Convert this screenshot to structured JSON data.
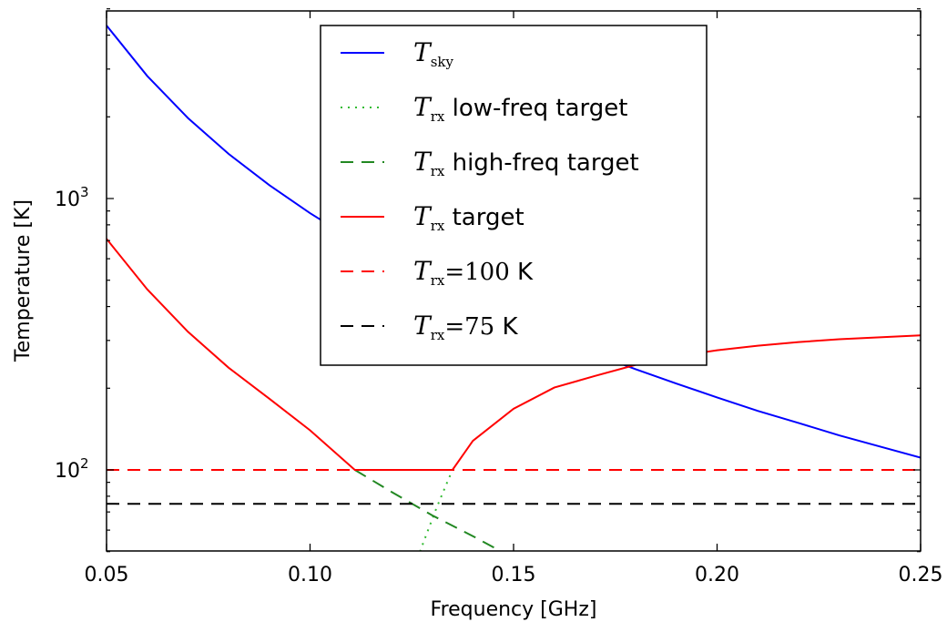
{
  "chart_data": {
    "type": "line",
    "xlabel": "Frequency [GHz]",
    "ylabel": "Temperature [K]",
    "x_range": [
      0.05,
      0.25
    ],
    "y_range": [
      50,
      5000
    ],
    "y_scale": "log",
    "x_ticks": [
      {
        "value": 0.05,
        "label": "0.05"
      },
      {
        "value": 0.1,
        "label": "0.10"
      },
      {
        "value": 0.15,
        "label": "0.15"
      },
      {
        "value": 0.2,
        "label": "0.20"
      },
      {
        "value": 0.25,
        "label": "0.25"
      }
    ],
    "y_ticks": [
      {
        "value": 100,
        "base": "10",
        "exp": "2"
      },
      {
        "value": 1000,
        "base": "10",
        "exp": "3"
      }
    ],
    "grid": false,
    "legend_position": "upper-center",
    "series": [
      {
        "key": "tsky",
        "legend": {
          "math": "T",
          "sub": "sky",
          "text": ""
        },
        "color": "#0000ff",
        "dash": "solid",
        "x": [
          0.05,
          0.06,
          0.07,
          0.08,
          0.09,
          0.1,
          0.11,
          0.12,
          0.13,
          0.14,
          0.15,
          0.16,
          0.17,
          0.18,
          0.19,
          0.2,
          0.21,
          0.22,
          0.23,
          0.24,
          0.25
        ],
        "y": [
          4340,
          2830,
          1980,
          1460,
          1120,
          883,
          713,
          587,
          491,
          415,
          355,
          307,
          267,
          235,
          208,
          185,
          165,
          149,
          134,
          122,
          111
        ]
      },
      {
        "key": "trx_low",
        "legend": {
          "math": "T",
          "sub": "rx",
          "text": " low-freq target"
        },
        "color": "#33bb33",
        "dash": "dotted",
        "x": [
          0.127,
          0.129,
          0.131,
          0.133,
          0.135
        ],
        "y": [
          50,
          60,
          72,
          85,
          100
        ]
      },
      {
        "key": "trx_high",
        "legend": {
          "math": "T",
          "sub": "rx",
          "text": " high-freq target"
        },
        "color": "#228822",
        "dash": "dashed",
        "x": [
          0.111,
          0.12,
          0.13,
          0.14,
          0.147
        ],
        "y": [
          100,
          83,
          68,
          57,
          50
        ]
      },
      {
        "key": "trx_target",
        "legend": {
          "math": "T",
          "sub": "rx",
          "text": " target"
        },
        "color": "#ff0000",
        "dash": "solid",
        "x": [
          0.05,
          0.06,
          0.07,
          0.08,
          0.09,
          0.1,
          0.111,
          0.12,
          0.13,
          0.135,
          0.14,
          0.15,
          0.16,
          0.17,
          0.18,
          0.19,
          0.2,
          0.21,
          0.22,
          0.23,
          0.24,
          0.25
        ],
        "y": [
          710,
          463,
          323,
          238,
          183,
          140,
          100,
          100,
          100,
          100,
          128,
          168,
          201,
          222,
          244,
          262,
          276,
          287,
          296,
          303,
          308,
          313
        ]
      },
      {
        "key": "trx_100",
        "legend": {
          "math": "T",
          "sub": "rx",
          "eq": "=100",
          "text": " K"
        },
        "color": "#ff0000",
        "dash": "dashed",
        "x": [
          0.05,
          0.25
        ],
        "y": [
          100,
          100
        ]
      },
      {
        "key": "trx_75",
        "legend": {
          "math": "T",
          "sub": "rx",
          "eq": "=75",
          "text": " K"
        },
        "color": "#000000",
        "dash": "dashed",
        "x": [
          0.05,
          0.25
        ],
        "y": [
          75,
          75
        ]
      }
    ]
  }
}
